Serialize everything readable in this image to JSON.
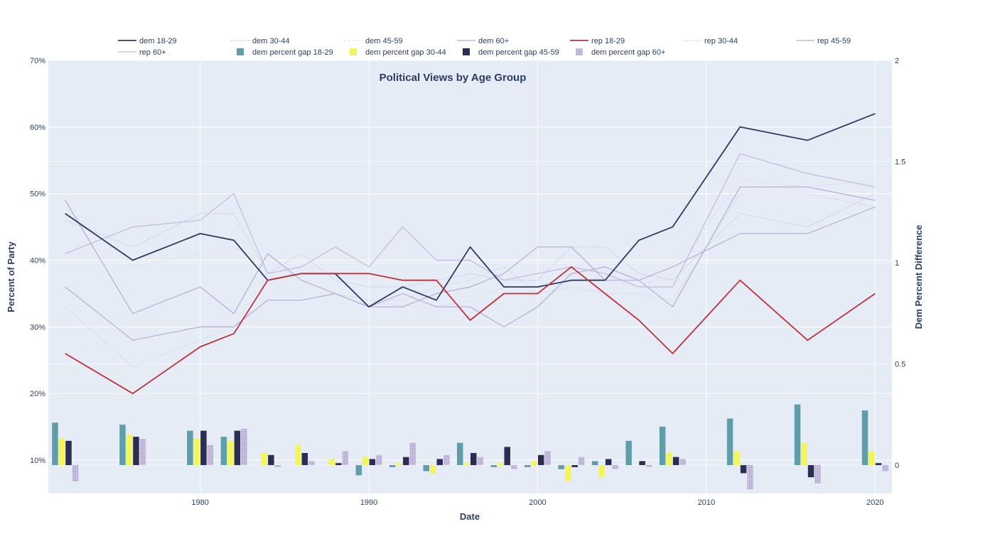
{
  "chart_data": {
    "type": "line",
    "title": "Political Views by Age Group",
    "xlabel": "Date",
    "ylabel": "Percent of Party",
    "y2label": "Dem Percent Difference",
    "xlim": [
      1971,
      2021
    ],
    "ylim": [
      5,
      70
    ],
    "y2lim": [
      -0.14,
      2
    ],
    "x_ticks": [
      1980,
      1990,
      2000,
      2010,
      2020
    ],
    "y_ticks": [
      10,
      20,
      30,
      40,
      50,
      60,
      70
    ],
    "y_tick_labels": [
      "10%",
      "20%",
      "30%",
      "40%",
      "50%",
      "60%",
      "70%"
    ],
    "y2_ticks": [
      0,
      0.5,
      1,
      1.5,
      2
    ],
    "y2_tick_labels": [
      "0",
      "0.5",
      "1",
      "1.5",
      "2"
    ],
    "grid": true,
    "legend_position": "top",
    "background_color": "#e5ecf6",
    "x": [
      1972,
      1976,
      1980,
      1982,
      1984,
      1986,
      1988,
      1990,
      1992,
      1994,
      1996,
      1998,
      2000,
      2002,
      2004,
      2006,
      2008,
      2012,
      2016,
      2020
    ],
    "series": [
      {
        "name": "dem 18-29",
        "color": "#2e3a5f",
        "width": 1.8,
        "dash": "",
        "values": [
          47,
          40,
          44,
          43,
          37,
          38,
          38,
          33,
          36,
          34,
          42,
          36,
          36,
          37,
          37,
          43,
          45,
          60,
          58,
          62
        ]
      },
      {
        "name": "dem 30-44",
        "color": "#c9bfe0",
        "width": 1,
        "dash": "2,2",
        "values": [
          46,
          42,
          47,
          47,
          38,
          41,
          37,
          36,
          36,
          37,
          38,
          37,
          37,
          42,
          42,
          38,
          37,
          47,
          45,
          50
        ]
      },
      {
        "name": "dem 45-59",
        "color": "#ded8ea",
        "width": 1,
        "dash": "3,3",
        "values": [
          48,
          39,
          41,
          42,
          40,
          37,
          35,
          34,
          33,
          33,
          34,
          36,
          36,
          38,
          37,
          36,
          38,
          52,
          51,
          52
        ]
      },
      {
        "name": "dem 60+",
        "color": "#b8acd2",
        "width": 1.2,
        "dash": "",
        "values": [
          49,
          32,
          36,
          32,
          41,
          37,
          35,
          33,
          35,
          33,
          33,
          30,
          33,
          38,
          39,
          37,
          33,
          51,
          51,
          49
        ]
      },
      {
        "name": "rep 18-29",
        "color": "#c1313a",
        "width": 1.8,
        "dash": "",
        "values": [
          26,
          20,
          27,
          29,
          37,
          38,
          38,
          38,
          37,
          37,
          31,
          35,
          35,
          39,
          35,
          31,
          26,
          37,
          28,
          35
        ]
      },
      {
        "name": "rep 30-44",
        "color": "#c9bfe0",
        "width": 1,
        "dash": "1,2",
        "values": [
          33,
          24,
          28,
          30,
          34,
          34,
          35,
          34,
          34,
          36,
          37,
          39,
          35,
          36,
          35,
          35,
          34,
          50,
          50,
          48
        ]
      },
      {
        "name": "rep 45-59",
        "color": "#b8acd2",
        "width": 1.2,
        "dash": "",
        "values": [
          36,
          28,
          30,
          30,
          34,
          34,
          35,
          33,
          33,
          35,
          36,
          38,
          42,
          42,
          37,
          37,
          39,
          44,
          44,
          48
        ]
      },
      {
        "name": "rep 60+",
        "color": "#c4b8dc",
        "width": 1.2,
        "dash": "",
        "values": [
          41,
          45,
          46,
          50,
          38,
          39,
          42,
          39,
          45,
          40,
          40,
          37,
          38,
          39,
          38,
          36,
          36,
          56,
          53,
          51
        ]
      }
    ],
    "bar_series": [
      {
        "name": "dem percent gap 18-29",
        "color": "#5f9ea8",
        "pattern": "",
        "values": [
          0.21,
          0.2,
          0.17,
          0.14,
          0,
          0,
          0,
          -0.05,
          -0.01,
          -0.03,
          0.11,
          -0.01,
          -0.01,
          -0.02,
          0.02,
          0.12,
          0.19,
          0.23,
          0.3,
          0.27
        ]
      },
      {
        "name": "dem percent gap 30-44",
        "color": "#f3f55c",
        "pattern": "",
        "values": [
          0.13,
          0.15,
          0.13,
          0.12,
          0.06,
          0.1,
          0.03,
          0.04,
          0.01,
          -0.04,
          0.01,
          0.01,
          0.02,
          -0.08,
          -0.06,
          0,
          0.06,
          0.07,
          0.11,
          0.07
        ]
      },
      {
        "name": "dem percent gap 45-59",
        "color": "#2b2d52",
        "pattern": "",
        "values": [
          0.12,
          0.14,
          0.17,
          0.17,
          0.05,
          0.06,
          0.01,
          0.03,
          0.04,
          0.03,
          0.06,
          0.09,
          0.05,
          -0.01,
          0.03,
          0.02,
          0.04,
          -0.04,
          -0.06,
          0.01
        ]
      },
      {
        "name": "dem percent gap 60+",
        "color": "#b8acd2",
        "pattern": "dots",
        "values": [
          -0.08,
          0.13,
          0.1,
          0.18,
          -0.01,
          0.02,
          0.07,
          0.05,
          0.11,
          0.05,
          0.04,
          -0.02,
          0.07,
          0.04,
          -0.02,
          -0.01,
          0.03,
          -0.12,
          -0.09,
          -0.03
        ]
      }
    ]
  }
}
